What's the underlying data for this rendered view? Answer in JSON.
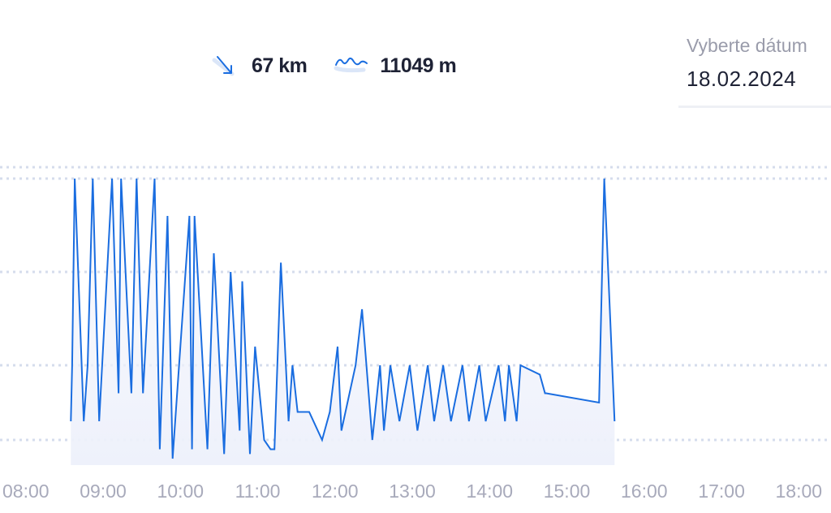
{
  "stats": {
    "distance": {
      "value": "67 km",
      "icon": "arrow-down-right-icon"
    },
    "elevation": {
      "value": "11049 m",
      "icon": "mountain-wave-icon"
    }
  },
  "date_picker": {
    "label": "Vyberte dátum",
    "value": "18.02.2024"
  },
  "colors": {
    "line": "#1a6de0",
    "fill": "#eef1fb",
    "grid": "#d5dcec",
    "tick": "#a8aabb"
  },
  "chart_data": {
    "type": "area",
    "title": "",
    "xlabel": "",
    "ylabel": "",
    "xlim": [
      "07:40",
      "18:25"
    ],
    "ylim": [
      0,
      3
    ],
    "grid": true,
    "gridlines_y": [
      0.2,
      1,
      2,
      3
    ],
    "x_ticks": [
      "08:00",
      "09:00",
      "10:00",
      "11:00",
      "12:00",
      "13:00",
      "14:00",
      "15:00",
      "16:00",
      "17:00",
      "18:00"
    ],
    "series": [
      {
        "x": [
          "08:35",
          "08:36",
          "08:38",
          "08:45",
          "08:48",
          "08:52",
          "08:57",
          "09:07",
          "09:12",
          "09:14",
          "09:22",
          "09:26",
          "09:31",
          "09:40",
          "09:44",
          "09:50",
          "09:54",
          "10:07",
          "10:09",
          "10:11",
          "10:21",
          "10:26",
          "10:34",
          "10:39",
          "10:46",
          "10:48",
          "10:54",
          "10:58",
          "11:05",
          "11:10",
          "11:13",
          "11:18",
          "11:24",
          "11:27",
          "11:31",
          "11:40",
          "11:50",
          "11:56",
          "12:02",
          "12:05",
          "12:16",
          "12:21",
          "12:29",
          "12:35",
          "12:38",
          "12:43",
          "12:50",
          "12:58",
          "13:04",
          "13:12",
          "13:17",
          "13:24",
          "13:30",
          "13:39",
          "13:44",
          "13:52",
          "13:57",
          "14:07",
          "14:12",
          "14:15",
          "14:21",
          "14:24",
          "14:39",
          "14:43",
          "14:44",
          "15:25",
          "15:29",
          "15:37"
        ],
        "y": [
          0.4,
          1.0,
          3.0,
          0.4,
          1.0,
          3.0,
          0.4,
          3.0,
          0.7,
          3.0,
          0.7,
          3.0,
          0.7,
          3.0,
          0.1,
          2.6,
          0.0,
          2.6,
          0.1,
          2.6,
          0.1,
          2.2,
          0.05,
          2.0,
          0.3,
          1.9,
          0.05,
          1.2,
          0.2,
          0.1,
          0.1,
          2.1,
          0.4,
          1.0,
          0.5,
          0.5,
          0.2,
          0.5,
          1.2,
          0.3,
          1.0,
          1.6,
          0.2,
          1.0,
          0.3,
          1.0,
          0.4,
          1.0,
          0.3,
          1.0,
          0.4,
          1.0,
          0.4,
          1.0,
          0.4,
          1.0,
          0.4,
          1.0,
          0.4,
          1.0,
          0.4,
          1.0,
          0.9,
          0.7,
          0.7,
          0.6,
          3.0,
          0.4
        ]
      }
    ]
  }
}
